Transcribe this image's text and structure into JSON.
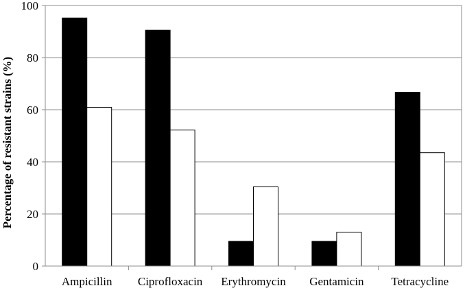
{
  "chart_data": {
    "type": "bar",
    "title": "",
    "xlabel": "",
    "ylabel": "Percentage of resistant strains (%)",
    "categories": [
      "Ampicillin",
      "Ciprofloxacin",
      "Erythromycin",
      "Gentamicin",
      "Tetracycline"
    ],
    "series": [
      {
        "values": [
          95.2,
          90.5,
          9.5,
          9.5,
          66.7
        ],
        "color": "#000000"
      },
      {
        "values": [
          60.9,
          52.2,
          30.4,
          13.0,
          43.5
        ],
        "color": "#ffffff"
      }
    ],
    "ylim": [
      0,
      100
    ],
    "yticks": [
      0,
      20,
      40,
      60,
      80,
      100
    ],
    "grid": true,
    "legend": "none"
  }
}
